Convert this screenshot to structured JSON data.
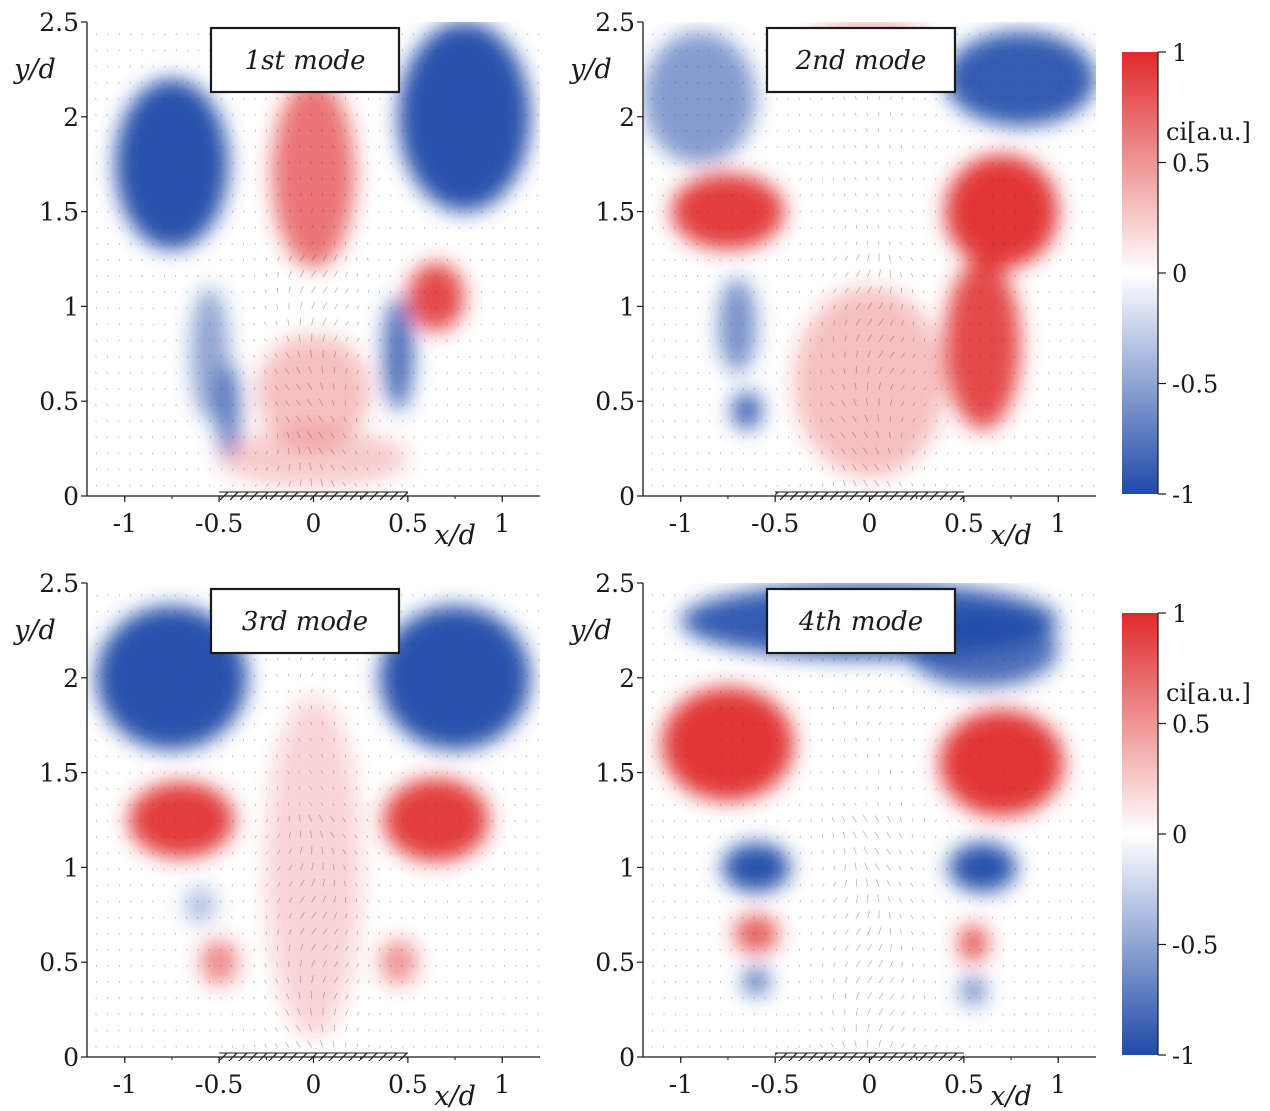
{
  "chart_data": [
    {
      "type": "heatmap",
      "title": "1st mode",
      "xlabel": "x/d",
      "ylabel": "y/d",
      "xlim": [
        -1.2,
        1.2
      ],
      "ylim": [
        0,
        2.5
      ],
      "x_ticks": [
        -1,
        -0.5,
        0,
        0.5,
        1
      ],
      "y_ticks": [
        0,
        0.5,
        1,
        1.5,
        2,
        2.5
      ],
      "colorbar": false,
      "blobs": [
        {
          "x": -0.75,
          "y": 1.75,
          "value": -0.95,
          "rx": 0.3,
          "ry": 0.45
        },
        {
          "x": 0.8,
          "y": 2.0,
          "value": -0.95,
          "rx": 0.35,
          "ry": 0.5
        },
        {
          "x": 0.0,
          "y": 1.7,
          "value": 0.65,
          "rx": 0.22,
          "ry": 0.5
        },
        {
          "x": 0.65,
          "y": 1.05,
          "value": 0.85,
          "rx": 0.15,
          "ry": 0.18
        },
        {
          "x": 0.45,
          "y": 0.75,
          "value": -0.8,
          "rx": 0.08,
          "ry": 0.3
        },
        {
          "x": -0.45,
          "y": 0.45,
          "value": -0.75,
          "rx": 0.06,
          "ry": 0.25
        },
        {
          "x": 0.0,
          "y": 0.55,
          "value": 0.3,
          "rx": 0.3,
          "ry": 0.3
        },
        {
          "x": 0.0,
          "y": 0.2,
          "value": 0.25,
          "rx": 0.5,
          "ry": 0.15
        },
        {
          "x": -0.55,
          "y": 0.75,
          "value": -0.5,
          "rx": 0.1,
          "ry": 0.35
        }
      ]
    },
    {
      "type": "heatmap",
      "title": "2nd mode",
      "xlabel": "x/d",
      "ylabel": "y/d",
      "xlim": [
        -1.2,
        1.2
      ],
      "ylim": [
        0,
        2.5
      ],
      "x_ticks": [
        -1,
        -0.5,
        0,
        0.5,
        1
      ],
      "y_ticks": [
        0,
        0.5,
        1,
        1.5,
        2,
        2.5
      ],
      "colorbar": true,
      "colorbar_label": "ci[a.u.]",
      "colorbar_ticks": [
        "1",
        "0.5",
        "0",
        "-0.5",
        "-1"
      ],
      "blobs": [
        {
          "x": -0.75,
          "y": 1.5,
          "value": 0.9,
          "rx": 0.3,
          "ry": 0.2
        },
        {
          "x": 0.7,
          "y": 1.5,
          "value": 0.95,
          "rx": 0.3,
          "ry": 0.3
        },
        {
          "x": 0.6,
          "y": 0.8,
          "value": 0.85,
          "rx": 0.2,
          "ry": 0.45
        },
        {
          "x": 0.8,
          "y": 2.2,
          "value": -0.9,
          "rx": 0.4,
          "ry": 0.25
        },
        {
          "x": -0.9,
          "y": 2.1,
          "value": -0.55,
          "rx": 0.3,
          "ry": 0.35
        },
        {
          "x": -0.65,
          "y": 0.45,
          "value": -0.85,
          "rx": 0.08,
          "ry": 0.1
        },
        {
          "x": -0.7,
          "y": 0.9,
          "value": -0.6,
          "rx": 0.1,
          "ry": 0.25
        },
        {
          "x": 0.0,
          "y": 0.6,
          "value": 0.3,
          "rx": 0.4,
          "ry": 0.5
        },
        {
          "x": 0.0,
          "y": 2.35,
          "value": 0.4,
          "rx": 0.35,
          "ry": 0.15
        }
      ]
    },
    {
      "type": "heatmap",
      "title": "3rd mode",
      "xlabel": "x/d",
      "ylabel": "y/d",
      "xlim": [
        -1.2,
        1.2
      ],
      "ylim": [
        0,
        2.5
      ],
      "x_ticks": [
        -1,
        -0.5,
        0,
        0.5,
        1
      ],
      "y_ticks": [
        0,
        0.5,
        1,
        1.5,
        2,
        2.5
      ],
      "colorbar": false,
      "blobs": [
        {
          "x": -0.75,
          "y": 2.0,
          "value": -0.95,
          "rx": 0.4,
          "ry": 0.38
        },
        {
          "x": 0.75,
          "y": 2.0,
          "value": -0.95,
          "rx": 0.4,
          "ry": 0.38
        },
        {
          "x": -0.7,
          "y": 1.25,
          "value": 0.9,
          "rx": 0.28,
          "ry": 0.2
        },
        {
          "x": 0.65,
          "y": 1.25,
          "value": 0.9,
          "rx": 0.28,
          "ry": 0.22
        },
        {
          "x": -0.5,
          "y": 0.5,
          "value": 0.55,
          "rx": 0.1,
          "ry": 0.12
        },
        {
          "x": 0.45,
          "y": 0.5,
          "value": 0.5,
          "rx": 0.1,
          "ry": 0.12
        },
        {
          "x": 0.0,
          "y": 1.0,
          "value": 0.2,
          "rx": 0.25,
          "ry": 0.9
        },
        {
          "x": -0.6,
          "y": 0.8,
          "value": -0.35,
          "rx": 0.08,
          "ry": 0.1
        }
      ]
    },
    {
      "type": "heatmap",
      "title": "4th mode",
      "xlabel": "x/d",
      "ylabel": "y/d",
      "xlim": [
        -1.2,
        1.2
      ],
      "ylim": [
        0,
        2.5
      ],
      "x_ticks": [
        -1,
        -0.5,
        0,
        0.5,
        1
      ],
      "y_ticks": [
        0,
        0.5,
        1,
        1.5,
        2,
        2.5
      ],
      "colorbar": true,
      "colorbar_label": "ci[a.u.]",
      "colorbar_ticks": [
        "1",
        "0.5",
        "0",
        "-0.5",
        "-1"
      ],
      "blobs": [
        {
          "x": 0.0,
          "y": 2.3,
          "value": -0.9,
          "rx": 1.0,
          "ry": 0.2
        },
        {
          "x": 0.6,
          "y": 2.15,
          "value": -0.8,
          "rx": 0.4,
          "ry": 0.2
        },
        {
          "x": -0.75,
          "y": 1.65,
          "value": 0.95,
          "rx": 0.35,
          "ry": 0.3
        },
        {
          "x": 0.7,
          "y": 1.55,
          "value": 0.95,
          "rx": 0.33,
          "ry": 0.28
        },
        {
          "x": -0.6,
          "y": 1.0,
          "value": -0.95,
          "rx": 0.18,
          "ry": 0.13
        },
        {
          "x": 0.6,
          "y": 1.0,
          "value": -0.95,
          "rx": 0.18,
          "ry": 0.13
        },
        {
          "x": -0.6,
          "y": 0.65,
          "value": 0.75,
          "rx": 0.12,
          "ry": 0.1
        },
        {
          "x": 0.55,
          "y": 0.6,
          "value": 0.75,
          "rx": 0.08,
          "ry": 0.1
        },
        {
          "x": -0.6,
          "y": 0.4,
          "value": -0.7,
          "rx": 0.07,
          "ry": 0.08
        },
        {
          "x": 0.55,
          "y": 0.35,
          "value": -0.6,
          "rx": 0.07,
          "ry": 0.08
        }
      ]
    }
  ],
  "colors": {
    "positive": "#e02a2a",
    "negative": "#1f4aa8",
    "neutral": "#ffffff",
    "axis": "#1a1a1a"
  }
}
